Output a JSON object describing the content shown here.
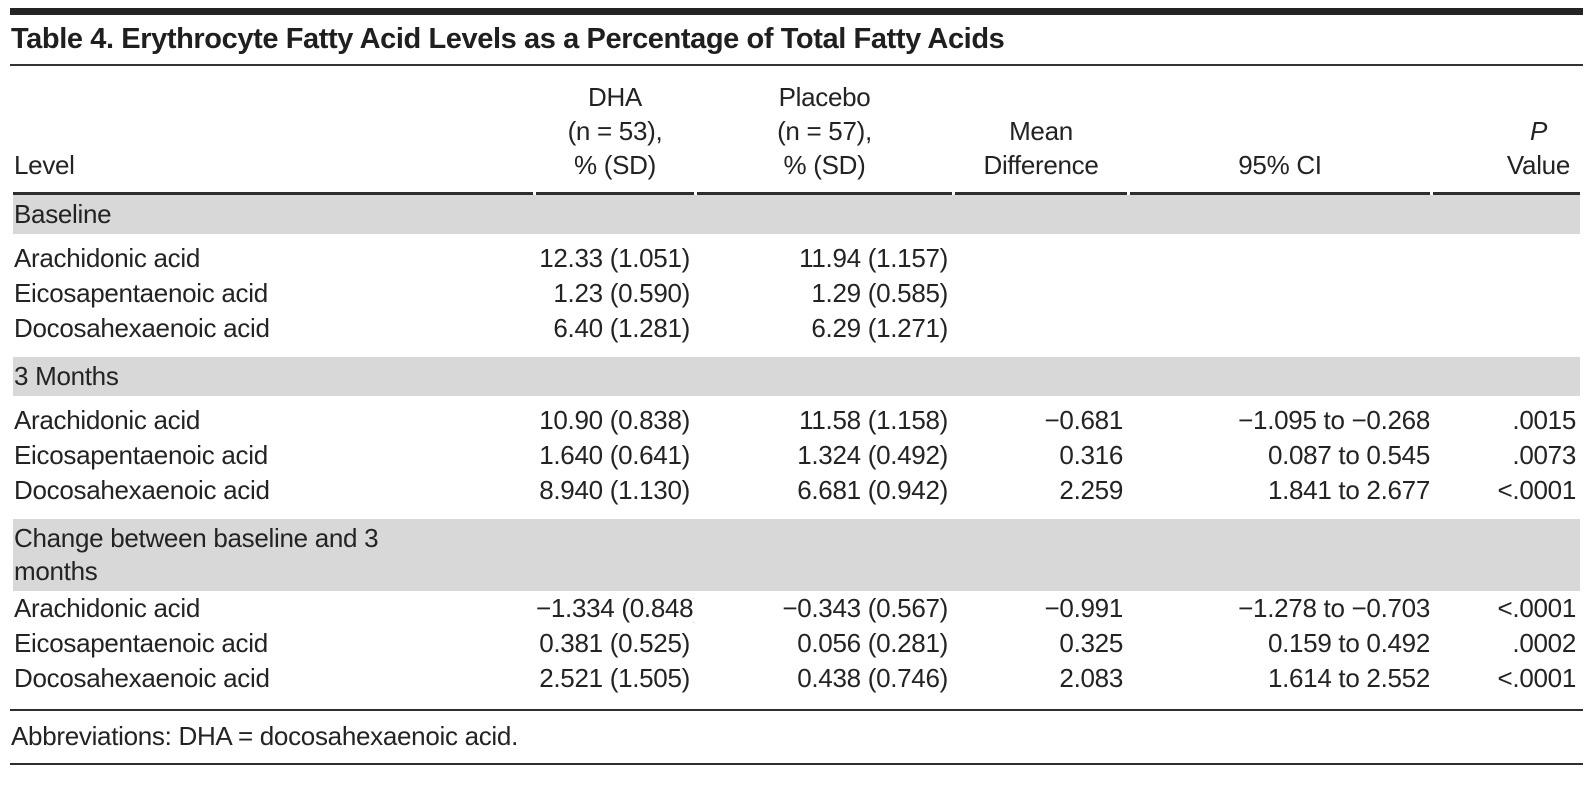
{
  "table": {
    "title": "Table 4. Erythrocyte Fatty Acid Levels as a Percentage of Total Fatty Acids",
    "columns": {
      "level": "Level",
      "dha": [
        "DHA",
        "(n = 53),",
        "% (SD)"
      ],
      "placebo": [
        "Placebo",
        "(n = 57),",
        "% (SD)"
      ],
      "mean_diff": [
        "Mean",
        "Difference"
      ],
      "ci": "95% CI",
      "p": [
        "P",
        "Value"
      ]
    },
    "sections": [
      {
        "label": "Baseline",
        "rows": [
          {
            "level": "Arachidonic acid",
            "dha": "12.33 (1.051)",
            "placebo": "11.94 (1.157)",
            "diff": "",
            "ci": "",
            "p": ""
          },
          {
            "level": "Eicosapentaenoic acid",
            "dha": "1.23 (0.590)",
            "placebo": "1.29 (0.585)",
            "diff": "",
            "ci": "",
            "p": ""
          },
          {
            "level": "Docosahexaenoic acid",
            "dha": "6.40 (1.281)",
            "placebo": "6.29 (1.271)",
            "diff": "",
            "ci": "",
            "p": ""
          }
        ]
      },
      {
        "label": "3 Months",
        "rows": [
          {
            "level": "Arachidonic acid",
            "dha": "10.90 (0.838)",
            "placebo": "11.58 (1.158)",
            "diff": "−0.681",
            "ci": "−1.095 to −0.268",
            "p": ".0015"
          },
          {
            "level": "Eicosapentaenoic acid",
            "dha": "1.640 (0.641)",
            "placebo": "1.324 (0.492)",
            "diff": "0.316",
            "ci": "0.087 to 0.545",
            "p": ".0073"
          },
          {
            "level": "Docosahexaenoic acid",
            "dha": "8.940 (1.130)",
            "placebo": "6.681 (0.942)",
            "diff": "2.259",
            "ci": "1.841 to 2.677",
            "p": "<.0001"
          }
        ]
      },
      {
        "label": "Change between baseline and 3 months",
        "rows": [
          {
            "level": "Arachidonic acid",
            "dha": "−1.334 (0.848)",
            "placebo": "−0.343 (0.567)",
            "diff": "−0.991",
            "ci": "−1.278 to −0.703",
            "p": "<.0001"
          },
          {
            "level": "Eicosapentaenoic acid",
            "dha": "0.381 (0.525)",
            "placebo": "0.056 (0.281)",
            "diff": "0.325",
            "ci": "0.159 to 0.492",
            "p": ".0002"
          },
          {
            "level": "Docosahexaenoic acid",
            "dha": "2.521 (1.505)",
            "placebo": "0.438 (0.746)",
            "diff": "2.083",
            "ci": "1.614 to 2.552",
            "p": "<.0001"
          }
        ]
      }
    ],
    "footnote": "Abbreviations: DHA = docosahexaenoic acid."
  },
  "colors": {
    "section_band": "#d8d8d8",
    "rule": "#2e2e2e",
    "text": "#232323"
  }
}
